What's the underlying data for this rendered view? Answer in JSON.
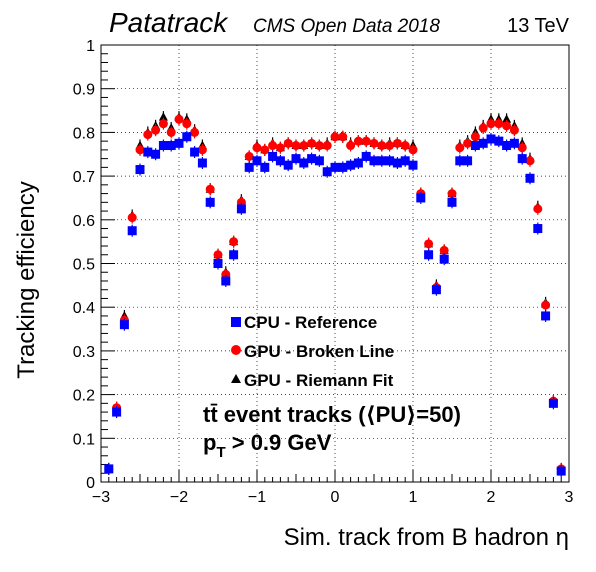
{
  "chart_data": {
    "type": "scatter",
    "title": "Patatrack",
    "subtitle": "CMS Open Data 2018",
    "energy_label": "13 TeV",
    "xlabel": "Sim. track from B hadron η",
    "ylabel": "Tracking efficiency",
    "xlim": [
      -3,
      3
    ],
    "ylim": [
      0,
      1
    ],
    "x_ticks": [
      -3,
      -2,
      -1,
      0,
      1,
      2,
      3
    ],
    "y_ticks": [
      0,
      0.1,
      0.2,
      0.3,
      0.4,
      0.5,
      0.6,
      0.7,
      0.8,
      0.9,
      1
    ],
    "grid": true,
    "legend_placement": "center-left",
    "annotation_main": "tt̄ event tracks (⟨PU⟩=50)",
    "annotation_pt_prefix": "p",
    "annotation_pt_sub": "T",
    "annotation_pt_suffix": " > 0.9 GeV",
    "x": [
      -2.9,
      -2.8,
      -2.7,
      -2.6,
      -2.5,
      -2.4,
      -2.3,
      -2.2,
      -2.1,
      -2.0,
      -1.9,
      -1.8,
      -1.7,
      -1.6,
      -1.5,
      -1.4,
      -1.3,
      -1.2,
      -1.1,
      -1.0,
      -0.9,
      -0.8,
      -0.7,
      -0.6,
      -0.5,
      -0.4,
      -0.3,
      -0.2,
      -0.1,
      0.0,
      0.1,
      0.2,
      0.3,
      0.4,
      0.5,
      0.6,
      0.7,
      0.8,
      0.9,
      1.0,
      1.1,
      1.2,
      1.3,
      1.4,
      1.5,
      1.6,
      1.7,
      1.8,
      1.9,
      2.0,
      2.1,
      2.2,
      2.3,
      2.4,
      2.5,
      2.6,
      2.7,
      2.8,
      2.9
    ],
    "series": [
      {
        "name": "CPU - Reference",
        "color": "#0000ff",
        "marker": "square",
        "values": [
          0.03,
          0.16,
          0.36,
          0.575,
          0.715,
          0.755,
          0.75,
          0.77,
          0.77,
          0.775,
          0.79,
          0.755,
          0.73,
          0.64,
          0.5,
          0.46,
          0.52,
          0.625,
          0.72,
          0.735,
          0.72,
          0.745,
          0.735,
          0.725,
          0.74,
          0.73,
          0.74,
          0.735,
          0.71,
          0.72,
          0.72,
          0.725,
          0.73,
          0.745,
          0.735,
          0.735,
          0.735,
          0.73,
          0.735,
          0.725,
          0.65,
          0.52,
          0.44,
          0.51,
          0.64,
          0.735,
          0.735,
          0.77,
          0.775,
          0.785,
          0.78,
          0.77,
          0.775,
          0.74,
          0.695,
          0.58,
          0.38,
          0.18,
          0.025
        ]
      },
      {
        "name": "GPU - Broken Line",
        "color": "#ff0000",
        "marker": "circle",
        "values": [
          0.03,
          0.17,
          0.37,
          0.605,
          0.76,
          0.795,
          0.805,
          0.82,
          0.8,
          0.83,
          0.82,
          0.8,
          0.76,
          0.67,
          0.52,
          0.475,
          0.55,
          0.64,
          0.745,
          0.765,
          0.76,
          0.77,
          0.765,
          0.775,
          0.77,
          0.77,
          0.775,
          0.77,
          0.77,
          0.79,
          0.79,
          0.77,
          0.78,
          0.78,
          0.775,
          0.77,
          0.77,
          0.775,
          0.77,
          0.76,
          0.66,
          0.545,
          0.445,
          0.53,
          0.66,
          0.765,
          0.775,
          0.79,
          0.81,
          0.82,
          0.82,
          0.815,
          0.805,
          0.765,
          0.735,
          0.625,
          0.405,
          0.185,
          0.03
        ]
      },
      {
        "name": "GPU - Riemann Fit",
        "color": "#000000",
        "marker": "triangle",
        "values": [
          0.03,
          0.17,
          0.38,
          0.61,
          0.77,
          0.8,
          0.815,
          0.835,
          0.81,
          0.835,
          0.83,
          0.805,
          0.77,
          0.67,
          0.52,
          0.48,
          0.55,
          0.645,
          0.745,
          0.77,
          0.76,
          0.775,
          0.765,
          0.775,
          0.77,
          0.77,
          0.775,
          0.77,
          0.775,
          0.79,
          0.79,
          0.775,
          0.78,
          0.78,
          0.775,
          0.77,
          0.775,
          0.775,
          0.77,
          0.77,
          0.66,
          0.545,
          0.45,
          0.53,
          0.66,
          0.77,
          0.78,
          0.8,
          0.815,
          0.83,
          0.83,
          0.83,
          0.815,
          0.775,
          0.74,
          0.63,
          0.41,
          0.185,
          0.03
        ]
      }
    ]
  }
}
